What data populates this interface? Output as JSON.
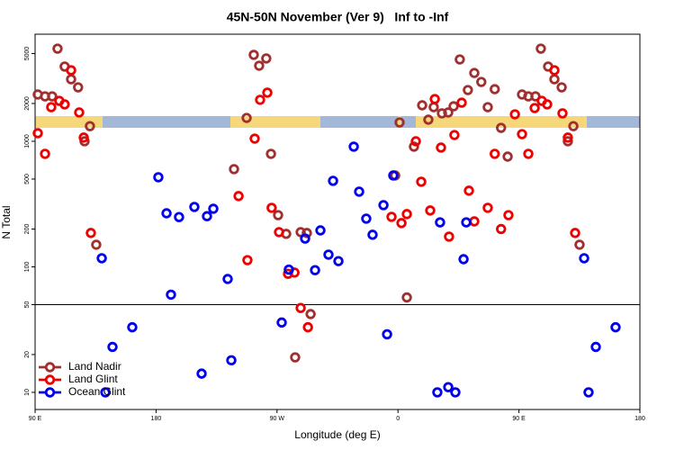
{
  "chart_data": {
    "type": "scatter",
    "title": "45N-50N November (Ver 9)   Inf to -Inf",
    "x_label": "Longitude (deg E)",
    "y_label": "N Total",
    "log_y": true,
    "legend": "bottom-left",
    "hlines": [
      50
    ],
    "xlim": [
      90,
      540
    ],
    "ylim": [
      7.3,
      7130
    ],
    "xticks": [
      {
        "value": 90,
        "label": "90 E"
      },
      180,
      {
        "value": 270,
        "label": "90 W"
      },
      {
        "value": 360,
        "label": "0"
      },
      {
        "value": 450,
        "label": "90 E"
      },
      {
        "value": 540,
        "label": "180"
      }
    ],
    "yticks": [
      10,
      20,
      50,
      100,
      200,
      500,
      1000,
      2000,
      5000
    ],
    "series": [
      {
        "name": "Land Nadir",
        "color": "#a03030",
        "x": [
          92,
          97.4,
          102.7,
          106.7,
          112,
          116.8,
          122,
          126.8,
          130.8,
          135.5,
          238,
          247.4,
          252.7,
          256.7,
          262,
          265.5,
          270.8,
          276.8,
          287.6,
          292.2,
          295,
          283.5,
          357.9,
          361.2,
          366.6,
          371.9,
          378,
          382.6,
          386.6,
          392.7,
          397.4,
          401.4,
          406,
          412,
          416.8,
          422,
          426.8,
          432,
          436.7,
          441.6,
          452.3,
          457,
          462.3,
          466.3,
          471.7,
          476.4,
          481.8,
          486.4,
          490.5,
          495.1
        ],
        "values": [
          2360,
          2280,
          2280,
          5470,
          3940,
          3120,
          2690,
          1000,
          1320,
          150,
          600,
          1535,
          4880,
          4000,
          4570,
          794,
          258,
          183,
          189,
          186,
          42,
          19,
          534,
          1413,
          57,
          906,
          1935,
          1486,
          1870,
          1670,
          1696,
          1900,
          4490,
          2560,
          3500,
          2970,
          1870,
          2600,
          1280,
          755,
          2360,
          2280,
          2280,
          5470,
          3940,
          3120,
          2690,
          1000,
          1320,
          150
        ]
      },
      {
        "name": "Land Glint",
        "color": "#ee0000",
        "x": [
          92,
          97.4,
          102,
          108,
          112,
          116.8,
          122.8,
          126.2,
          131.5,
          241.4,
          248,
          253.4,
          257.4,
          262.8,
          266,
          271.5,
          278.2,
          283,
          287.6,
          293,
          355.2,
          362.6,
          366.6,
          373.3,
          377.3,
          384,
          387.4,
          392,
          398,
          402,
          407.4,
          412.8,
          416.8,
          426.8,
          432,
          436.7,
          442.2,
          447,
          452.3,
          457,
          461.7,
          467,
          471,
          476.4,
          482.4,
          486.4,
          491.8
        ],
        "values": [
          1160,
          794,
          1870,
          2100,
          1970,
          3680,
          1696,
          1070,
          186,
          366,
          113,
          1050,
          2140,
          2440,
          295,
          189,
          88,
          90,
          47,
          33,
          250,
          223,
          263,
          1000,
          476,
          281,
          2170,
          891,
          174,
          1122,
          2030,
          404,
          230,
          295,
          794,
          200,
          258,
          1640,
          1140,
          794,
          1840,
          2100,
          1970,
          3680,
          1670,
          1070,
          186
        ]
      },
      {
        "name": "Ocean Glint",
        "color": "#0000ee",
        "x": [
          139.6,
          142.3,
          147.6,
          162.3,
          181.7,
          187.8,
          191.1,
          197.1,
          208.5,
          213.9,
          217.9,
          222.6,
          233.3,
          236,
          273.5,
          278.8,
          290.9,
          298.3,
          302.3,
          308.3,
          311.7,
          315.7,
          327.1,
          331.1,
          336.4,
          341.1,
          349.2,
          351.9,
          356.5,
          389.3,
          391.3,
          397.4,
          402.7,
          408.8,
          410.8,
          498.5,
          501.8,
          507.2,
          521.9
        ],
        "values": [
          117,
          10,
          23,
          33,
          517,
          267,
          60,
          249,
          300,
          14.1,
          253,
          290,
          80,
          18,
          36,
          95,
          168,
          94,
          195,
          125,
          484,
          111,
          906,
          397,
          242,
          180,
          310,
          29,
          534,
          10,
          226,
          11,
          10,
          115,
          226,
          117,
          10,
          23,
          33
        ]
      }
    ]
  }
}
